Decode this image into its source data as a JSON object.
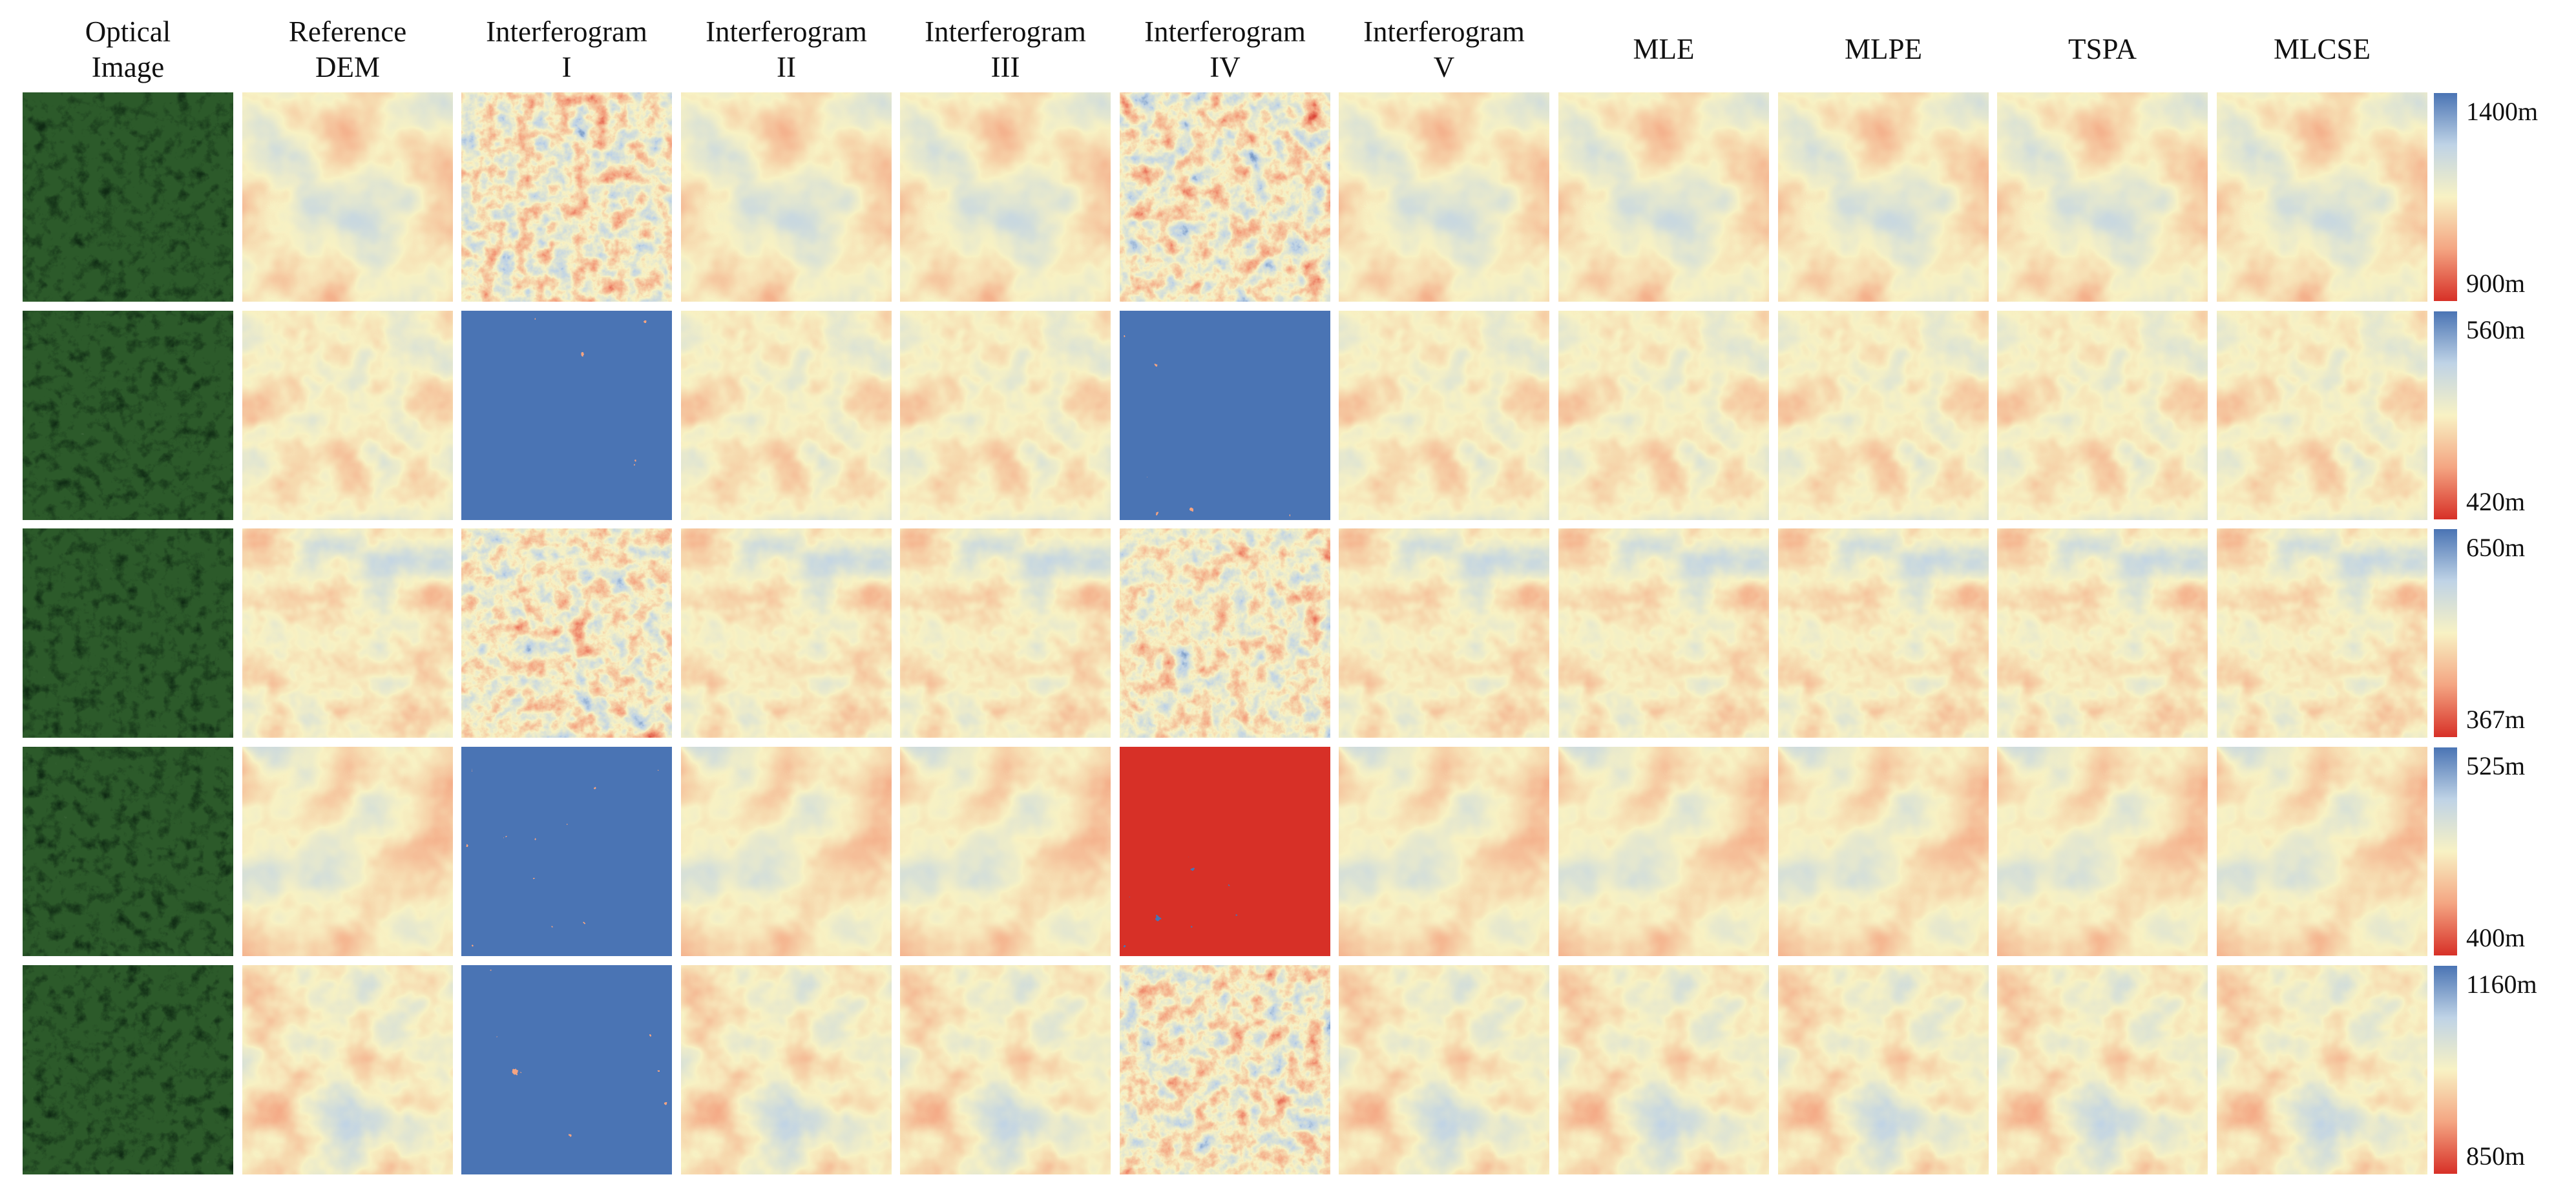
{
  "columns": [
    {
      "key": "optical",
      "line1": "Optical",
      "line2": "Image"
    },
    {
      "key": "reference_dem",
      "line1": "Reference",
      "line2": "DEM"
    },
    {
      "key": "interferogram_1",
      "line1": "Interferogram",
      "line2": "I"
    },
    {
      "key": "interferogram_2",
      "line1": "Interferogram",
      "line2": "II"
    },
    {
      "key": "interferogram_3",
      "line1": "Interferogram",
      "line2": "III"
    },
    {
      "key": "interferogram_4",
      "line1": "Interferogram",
      "line2": "IV"
    },
    {
      "key": "interferogram_5",
      "line1": "Interferogram",
      "line2": "V"
    },
    {
      "key": "mle",
      "line1": "MLE",
      "line2": ""
    },
    {
      "key": "mlpe",
      "line1": "MLPE",
      "line2": ""
    },
    {
      "key": "tspa",
      "line1": "TSPA",
      "line2": ""
    },
    {
      "key": "mlcse",
      "line1": "MLCSE",
      "line2": ""
    }
  ],
  "rows": [
    {
      "scale_max": "1400m",
      "scale_min": "900m",
      "tiles": [
        "optical",
        "dem",
        "noisy",
        "dem",
        "dem",
        "noisy",
        "dem",
        "dem",
        "dem",
        "dem",
        "dem"
      ]
    },
    {
      "scale_max": "560m",
      "scale_min": "420m",
      "tiles": [
        "optical",
        "dem",
        "saturated-high",
        "dem",
        "dem",
        "saturated-high",
        "dem",
        "dem",
        "dem",
        "dem",
        "dem"
      ]
    },
    {
      "scale_max": "650m",
      "scale_min": "367m",
      "tiles": [
        "optical",
        "dem",
        "noisy",
        "dem",
        "dem",
        "noisy",
        "dem",
        "dem",
        "dem",
        "dem",
        "dem"
      ]
    },
    {
      "scale_max": "525m",
      "scale_min": "400m",
      "tiles": [
        "optical",
        "dem",
        "saturated-high",
        "dem",
        "dem",
        "saturated-low",
        "dem",
        "dem",
        "dem",
        "dem",
        "dem"
      ]
    },
    {
      "scale_max": "1160m",
      "scale_min": "850m",
      "tiles": [
        "optical",
        "dem",
        "saturated-high",
        "dem",
        "dem",
        "noisy",
        "dem",
        "dem",
        "dem",
        "dem",
        "dem"
      ]
    }
  ],
  "colormap": {
    "high": "#4a74b4",
    "mid_high": "#bfd3e6",
    "mid": "#f8f2c4",
    "mid_low": "#f4a582",
    "low": "#d73027"
  },
  "optical_palette": {
    "dark": "#0f2a14",
    "forest": "#2c5a2a",
    "light": "#8fa88a"
  }
}
